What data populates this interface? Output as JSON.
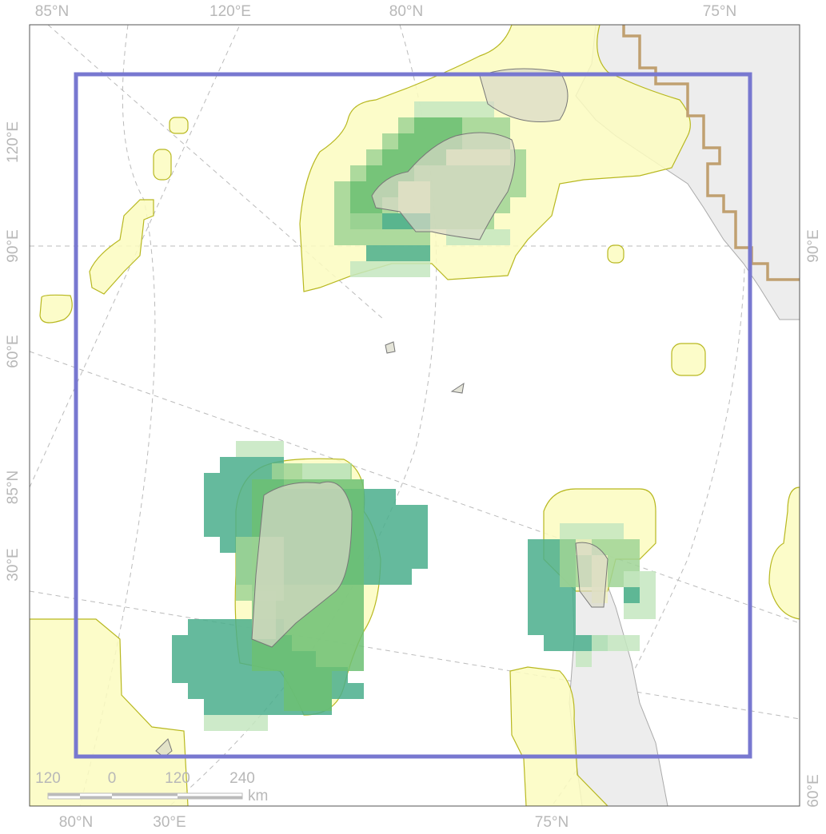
{
  "labels": {
    "top": [
      "85°N",
      "120°E",
      "80°N",
      "75°N"
    ],
    "left": [
      "120°E",
      "90°E",
      "60°E",
      "85°N",
      "30°E"
    ],
    "right": [
      "90°E",
      "60°E"
    ],
    "bottom": [
      "80°N",
      "30°E",
      "75°N"
    ]
  },
  "scale_bar": {
    "ticks": [
      "120",
      "0",
      "120",
      "240"
    ],
    "unit": "km"
  }
}
